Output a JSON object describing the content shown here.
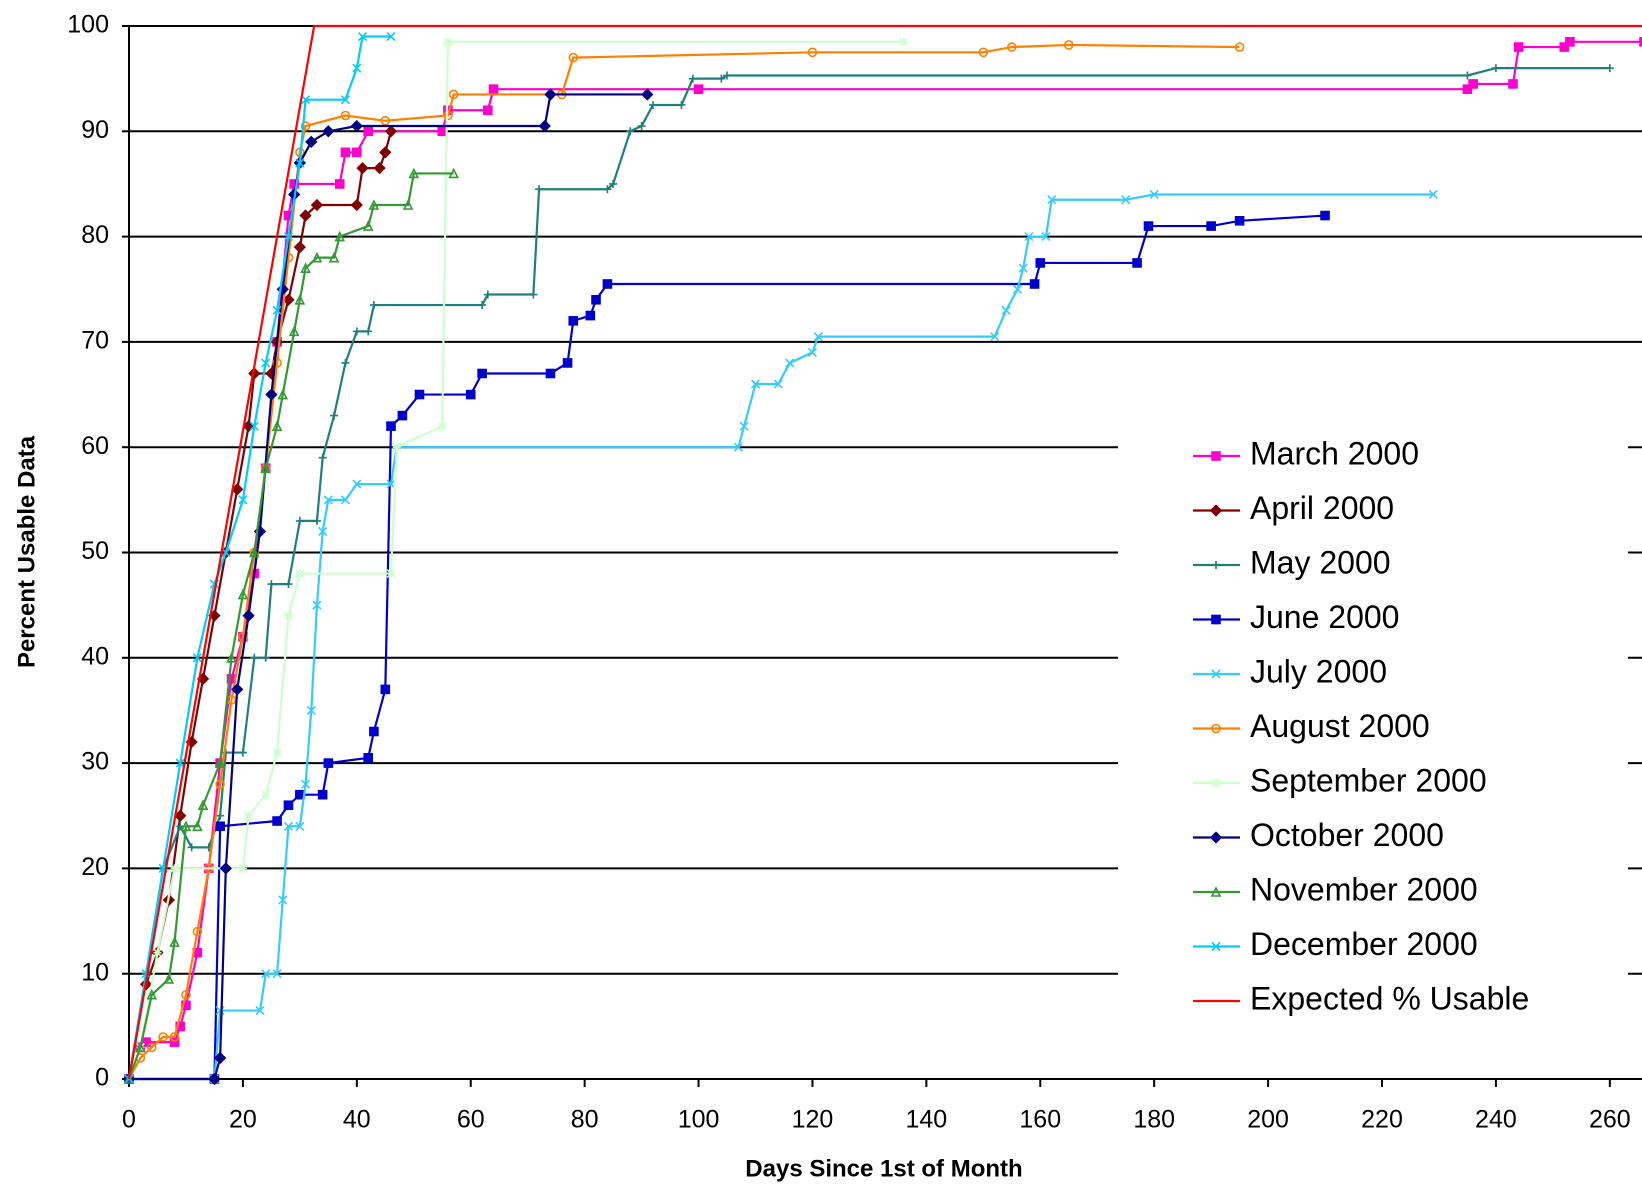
{
  "chart_data": {
    "type": "line",
    "xlabel": "Days Since 1st of Month",
    "ylabel": "Percent Usable Data",
    "xlim": [
      0,
      266
    ],
    "ylim": [
      0,
      100
    ],
    "xticks": [
      0,
      20,
      40,
      60,
      80,
      100,
      120,
      140,
      160,
      180,
      200,
      220,
      240,
      260
    ],
    "yticks": [
      0,
      10,
      20,
      30,
      40,
      50,
      60,
      70,
      80,
      90,
      100
    ],
    "grid": true,
    "legend": "right",
    "series": [
      {
        "name": "March 2000",
        "color": "#ff00cc",
        "marker": "square",
        "x": [
          2,
          3,
          8,
          9,
          10,
          12,
          14,
          16,
          18,
          20,
          22,
          24,
          26,
          28,
          29,
          37,
          38,
          40,
          42,
          55,
          56,
          63,
          64,
          100,
          235,
          236,
          243,
          244,
          252,
          253,
          266
        ],
        "values": [
          3,
          3.5,
          3.5,
          5,
          7,
          12,
          20,
          30,
          38,
          42,
          48,
          58,
          70,
          82,
          85,
          85,
          88,
          88,
          90,
          90,
          92,
          92,
          94,
          94,
          94,
          94.5,
          94.5,
          98,
          98,
          98.5,
          98.5
        ]
      },
      {
        "name": "April 2000",
        "color": "#800000",
        "marker": "diamond",
        "x": [
          3,
          5,
          7,
          9,
          11,
          13,
          15,
          17,
          19,
          21,
          22,
          25,
          26,
          28,
          30,
          31,
          33,
          40,
          41,
          44,
          45,
          46
        ],
        "values": [
          9,
          12,
          17,
          25,
          32,
          38,
          44,
          50,
          56,
          62,
          67,
          67,
          70,
          74,
          79,
          82,
          83,
          83,
          86.5,
          86.5,
          88,
          90
        ]
      },
      {
        "name": "May 2000",
        "color": "#1f7f7f",
        "marker": "plus",
        "x": [
          0,
          3,
          6,
          9,
          11,
          14,
          16,
          17,
          20,
          22,
          24,
          25,
          28,
          30,
          33,
          34,
          36,
          38,
          40,
          42,
          43,
          62,
          63,
          71,
          72,
          84,
          85,
          88,
          90,
          92,
          97,
          99,
          104,
          105,
          235,
          240,
          260
        ],
        "values": [
          0,
          10,
          20,
          24,
          22,
          22,
          25,
          31,
          31,
          40,
          40,
          47,
          47,
          53,
          53,
          59,
          63,
          68,
          71,
          71,
          73.5,
          73.5,
          74.5,
          74.5,
          84.5,
          84.5,
          85,
          90,
          90.5,
          92.5,
          92.5,
          95,
          95,
          95.3,
          95.3,
          96,
          96
        ]
      },
      {
        "name": "June 2000",
        "color": "#0000cc",
        "marker": "square",
        "x": [
          0,
          15,
          16,
          26,
          28,
          30,
          34,
          35,
          42,
          43,
          45,
          46,
          48,
          51,
          60,
          62,
          74,
          77,
          78,
          81,
          82,
          84,
          159,
          160,
          177,
          179,
          190,
          195,
          210
        ],
        "values": [
          0,
          0,
          24,
          24.5,
          26,
          27,
          27,
          30,
          30.5,
          33,
          37,
          62,
          63,
          65,
          65,
          67,
          67,
          68,
          72,
          72.5,
          74,
          75.5,
          75.5,
          77.5,
          77.5,
          81,
          81,
          81.5,
          82
        ]
      },
      {
        "name": "July 2000",
        "color": "#33ccff",
        "marker": "x",
        "x": [
          0,
          15,
          16,
          23,
          24,
          26,
          27,
          28,
          30,
          31,
          32,
          33,
          34,
          35,
          38,
          40,
          46,
          47,
          107,
          108,
          110,
          114,
          116,
          120,
          121,
          152,
          154,
          156,
          157,
          158,
          161,
          162,
          175,
          180,
          229
        ],
        "values": [
          0,
          0,
          6.5,
          6.5,
          10,
          10,
          17,
          24,
          24,
          28,
          35,
          45,
          52,
          55,
          55,
          56.5,
          56.5,
          60,
          60,
          62,
          66,
          66,
          68,
          69,
          70.5,
          70.5,
          73,
          75,
          77,
          80,
          80,
          83.5,
          83.5,
          84,
          84
        ]
      },
      {
        "name": "August 2000",
        "color": "#ff7f00",
        "marker": "circle",
        "x": [
          0,
          2,
          4,
          6,
          8,
          10,
          12,
          14,
          16,
          18,
          20,
          22,
          24,
          26,
          28,
          30,
          31,
          38,
          45,
          56,
          57,
          76,
          78,
          120,
          150,
          155,
          165,
          195
        ],
        "values": [
          0,
          2,
          3,
          4,
          4,
          8,
          14,
          20,
          28,
          36,
          42,
          50,
          58,
          68,
          78,
          88,
          90.5,
          91.5,
          91,
          91.5,
          93.5,
          93.5,
          97,
          97.5,
          97.5,
          98,
          98.2,
          98
        ]
      },
      {
        "name": "September 2000",
        "color": "#ccffcc",
        "marker": "star",
        "x": [
          0,
          2,
          5,
          8,
          20,
          21,
          24,
          26,
          28,
          30,
          46,
          47,
          55,
          56,
          136
        ],
        "values": [
          0,
          3,
          12,
          20,
          20,
          25,
          27,
          31,
          44,
          48,
          48,
          60,
          62,
          98.5,
          98.5
        ]
      },
      {
        "name": "October 2000",
        "color": "#000080",
        "marker": "diamond",
        "x": [
          0,
          15,
          16,
          17,
          19,
          21,
          23,
          25,
          27,
          29,
          30,
          32,
          35,
          40,
          73,
          74,
          91
        ],
        "values": [
          0,
          0,
          2,
          20,
          37,
          44,
          52,
          65,
          75,
          84,
          87,
          89,
          90,
          90.5,
          90.5,
          93.5,
          93.5
        ]
      },
      {
        "name": "November 2000",
        "color": "#339933",
        "marker": "triangle",
        "x": [
          0,
          2,
          4,
          7,
          8,
          10,
          12,
          13,
          16,
          18,
          20,
          22,
          24,
          26,
          27,
          29,
          30,
          31,
          33,
          36,
          37,
          42,
          43,
          49,
          50,
          57
        ],
        "values": [
          0,
          3,
          8,
          9.5,
          13,
          24,
          24,
          26,
          30,
          40,
          46,
          50,
          58,
          62,
          65,
          71,
          74,
          77,
          78,
          78,
          80,
          81,
          83,
          83,
          86,
          86
        ]
      },
      {
        "name": "December 2000",
        "color": "#00ccff",
        "marker": "x",
        "x": [
          0,
          3,
          6,
          9,
          12,
          15,
          17,
          20,
          22,
          24,
          26,
          28,
          30,
          31,
          38,
          40,
          41,
          46
        ],
        "values": [
          0,
          10,
          20,
          30,
          40,
          47,
          50,
          55,
          62,
          68,
          73,
          80,
          87,
          93,
          93,
          96,
          99,
          99
        ]
      },
      {
        "name": "Expected % Usable",
        "color": "#ff0000",
        "marker": "none",
        "x": [
          0,
          32.5,
          266
        ],
        "values": [
          0,
          100,
          100
        ]
      }
    ]
  }
}
